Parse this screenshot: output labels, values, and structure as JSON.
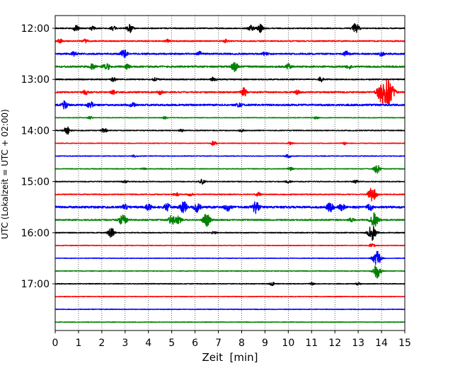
{
  "chart_data": {
    "type": "line",
    "title": "",
    "xlabel": "Zeit  [min]",
    "ylabel": "UTC (Lokalzeit = UTC + 02:00)",
    "xlim": [
      0,
      15
    ],
    "x_ticks": [
      "0",
      "1",
      "2",
      "3",
      "4",
      "5",
      "6",
      "7",
      "8",
      "9",
      "10",
      "11",
      "12",
      "13",
      "14",
      "15"
    ],
    "y_ticks": [
      "12:00",
      "13:00",
      "14:00",
      "15:00",
      "16:00",
      "17:00"
    ],
    "trace_interval_min": 15,
    "grid": "vertical dotted at each minute",
    "series_colors": [
      "#000000",
      "#ff0000",
      "#0000ff",
      "#008000"
    ],
    "series": [
      {
        "start": "12:00",
        "color": "#000000",
        "amplitude": 0.1,
        "events": [
          {
            "t": 0.9,
            "a": 0.55
          },
          {
            "t": 1.6,
            "a": 0.35
          },
          {
            "t": 2.5,
            "a": 0.4
          },
          {
            "t": 3.2,
            "a": 0.8
          },
          {
            "t": 8.4,
            "a": 0.6
          },
          {
            "t": 8.8,
            "a": 0.8
          },
          {
            "t": 12.9,
            "a": 1.0
          }
        ]
      },
      {
        "start": "12:15",
        "color": "#ff0000",
        "amplitude": 0.11,
        "events": [
          {
            "t": 0.2,
            "a": 0.4
          },
          {
            "t": 1.3,
            "a": 0.35
          },
          {
            "t": 4.8,
            "a": 0.3
          },
          {
            "t": 7.3,
            "a": 0.3
          }
        ]
      },
      {
        "start": "12:30",
        "color": "#0000ff",
        "amplitude": 0.15,
        "events": [
          {
            "t": 0.8,
            "a": 0.4
          },
          {
            "t": 2.9,
            "a": 0.5
          },
          {
            "t": 3.0,
            "a": 0.45
          },
          {
            "t": 6.2,
            "a": 0.4
          },
          {
            "t": 9.0,
            "a": 0.35
          },
          {
            "t": 12.5,
            "a": 0.45
          },
          {
            "t": 14.0,
            "a": 0.4
          }
        ]
      },
      {
        "start": "12:45",
        "color": "#008000",
        "amplitude": 0.16,
        "events": [
          {
            "t": 1.6,
            "a": 0.5
          },
          {
            "t": 2.2,
            "a": 0.75
          },
          {
            "t": 3.1,
            "a": 0.4
          },
          {
            "t": 7.7,
            "a": 0.85
          },
          {
            "t": 10.0,
            "a": 0.45
          },
          {
            "t": 12.6,
            "a": 0.35
          }
        ]
      },
      {
        "start": "13:00",
        "color": "#000000",
        "amplitude": 0.11,
        "events": [
          {
            "t": 2.5,
            "a": 0.35
          },
          {
            "t": 4.3,
            "a": 0.3
          },
          {
            "t": 6.8,
            "a": 0.4
          },
          {
            "t": 11.4,
            "a": 0.45
          }
        ]
      },
      {
        "start": "13:15",
        "color": "#ff0000",
        "amplitude": 0.14,
        "events": [
          {
            "t": 1.3,
            "a": 0.45
          },
          {
            "t": 2.5,
            "a": 0.35
          },
          {
            "t": 4.5,
            "a": 0.4
          },
          {
            "t": 8.1,
            "a": 0.8
          },
          {
            "t": 10.4,
            "a": 0.4
          },
          {
            "t": 14.0,
            "a": 1.8
          },
          {
            "t": 14.3,
            "a": 2.4
          }
        ]
      },
      {
        "start": "13:30",
        "color": "#0000ff",
        "amplitude": 0.17,
        "events": [
          {
            "t": 0.4,
            "a": 0.7
          },
          {
            "t": 1.5,
            "a": 0.6
          },
          {
            "t": 3.3,
            "a": 0.4
          },
          {
            "t": 7.9,
            "a": 0.35
          }
        ]
      },
      {
        "start": "13:45",
        "color": "#008000",
        "amplitude": 0.06,
        "events": [
          {
            "t": 1.5,
            "a": 0.3
          },
          {
            "t": 4.7,
            "a": 0.25
          },
          {
            "t": 11.2,
            "a": 0.25
          }
        ]
      },
      {
        "start": "14:00",
        "color": "#000000",
        "amplitude": 0.08,
        "events": [
          {
            "t": 0.5,
            "a": 0.8
          },
          {
            "t": 2.1,
            "a": 0.5
          },
          {
            "t": 5.4,
            "a": 0.25
          },
          {
            "t": 8.0,
            "a": 0.25
          }
        ]
      },
      {
        "start": "14:15",
        "color": "#ff0000",
        "amplitude": 0.06,
        "events": [
          {
            "t": 6.8,
            "a": 0.45
          },
          {
            "t": 10.1,
            "a": 0.25
          },
          {
            "t": 12.4,
            "a": 0.3
          }
        ]
      },
      {
        "start": "14:30",
        "color": "#0000ff",
        "amplitude": 0.07,
        "events": [
          {
            "t": 3.4,
            "a": 0.25
          },
          {
            "t": 10.0,
            "a": 0.4
          }
        ]
      },
      {
        "start": "14:45",
        "color": "#008000",
        "amplitude": 0.07,
        "events": [
          {
            "t": 3.8,
            "a": 0.25
          },
          {
            "t": 10.1,
            "a": 0.3
          },
          {
            "t": 13.8,
            "a": 0.95
          }
        ]
      },
      {
        "start": "15:00",
        "color": "#000000",
        "amplitude": 0.08,
        "events": [
          {
            "t": 3.0,
            "a": 0.25
          },
          {
            "t": 6.3,
            "a": 0.45
          },
          {
            "t": 10.0,
            "a": 0.25
          },
          {
            "t": 12.9,
            "a": 0.3
          }
        ]
      },
      {
        "start": "15:15",
        "color": "#ff0000",
        "amplitude": 0.09,
        "events": [
          {
            "t": 5.2,
            "a": 0.35
          },
          {
            "t": 5.8,
            "a": 0.3
          },
          {
            "t": 8.7,
            "a": 0.4
          },
          {
            "t": 13.6,
            "a": 1.5
          }
        ]
      },
      {
        "start": "15:30",
        "color": "#0000ff",
        "amplitude": 0.2,
        "events": [
          {
            "t": 3.0,
            "a": 0.6
          },
          {
            "t": 4.0,
            "a": 0.55
          },
          {
            "t": 4.8,
            "a": 0.7
          },
          {
            "t": 5.5,
            "a": 1.1
          },
          {
            "t": 6.1,
            "a": 0.9
          },
          {
            "t": 7.4,
            "a": 0.7
          },
          {
            "t": 8.6,
            "a": 1.1
          },
          {
            "t": 11.8,
            "a": 0.9
          },
          {
            "t": 12.3,
            "a": 0.7
          },
          {
            "t": 13.5,
            "a": 0.6
          }
        ]
      },
      {
        "start": "15:45",
        "color": "#008000",
        "amplitude": 0.13,
        "events": [
          {
            "t": 2.9,
            "a": 1.2
          },
          {
            "t": 5.0,
            "a": 0.9
          },
          {
            "t": 5.3,
            "a": 0.7
          },
          {
            "t": 6.5,
            "a": 1.3
          },
          {
            "t": 12.7,
            "a": 0.4
          },
          {
            "t": 13.7,
            "a": 1.4
          }
        ]
      },
      {
        "start": "16:00",
        "color": "#000000",
        "amplitude": 0.08,
        "events": [
          {
            "t": 2.4,
            "a": 0.9
          },
          {
            "t": 6.8,
            "a": 0.25
          },
          {
            "t": 13.6,
            "a": 1.5
          }
        ]
      },
      {
        "start": "16:15",
        "color": "#ff0000",
        "amplitude": 0.06,
        "events": [
          {
            "t": 13.6,
            "a": 0.4
          }
        ]
      },
      {
        "start": "16:30",
        "color": "#0000ff",
        "amplitude": 0.06,
        "events": [
          {
            "t": 13.8,
            "a": 1.5
          }
        ]
      },
      {
        "start": "16:45",
        "color": "#008000",
        "amplitude": 0.06,
        "events": [
          {
            "t": 13.8,
            "a": 1.4
          }
        ]
      },
      {
        "start": "17:00",
        "color": "#000000",
        "amplitude": 0.07,
        "events": [
          {
            "t": 9.3,
            "a": 0.3
          },
          {
            "t": 11.0,
            "a": 0.25
          },
          {
            "t": 13.0,
            "a": 0.25
          }
        ]
      },
      {
        "start": "17:15",
        "color": "#ff0000",
        "amplitude": 0.06,
        "events": []
      },
      {
        "start": "17:30",
        "color": "#0000ff",
        "amplitude": 0.06,
        "events": []
      },
      {
        "start": "17:45",
        "color": "#008000",
        "amplitude": 0.06,
        "events": []
      }
    ]
  }
}
